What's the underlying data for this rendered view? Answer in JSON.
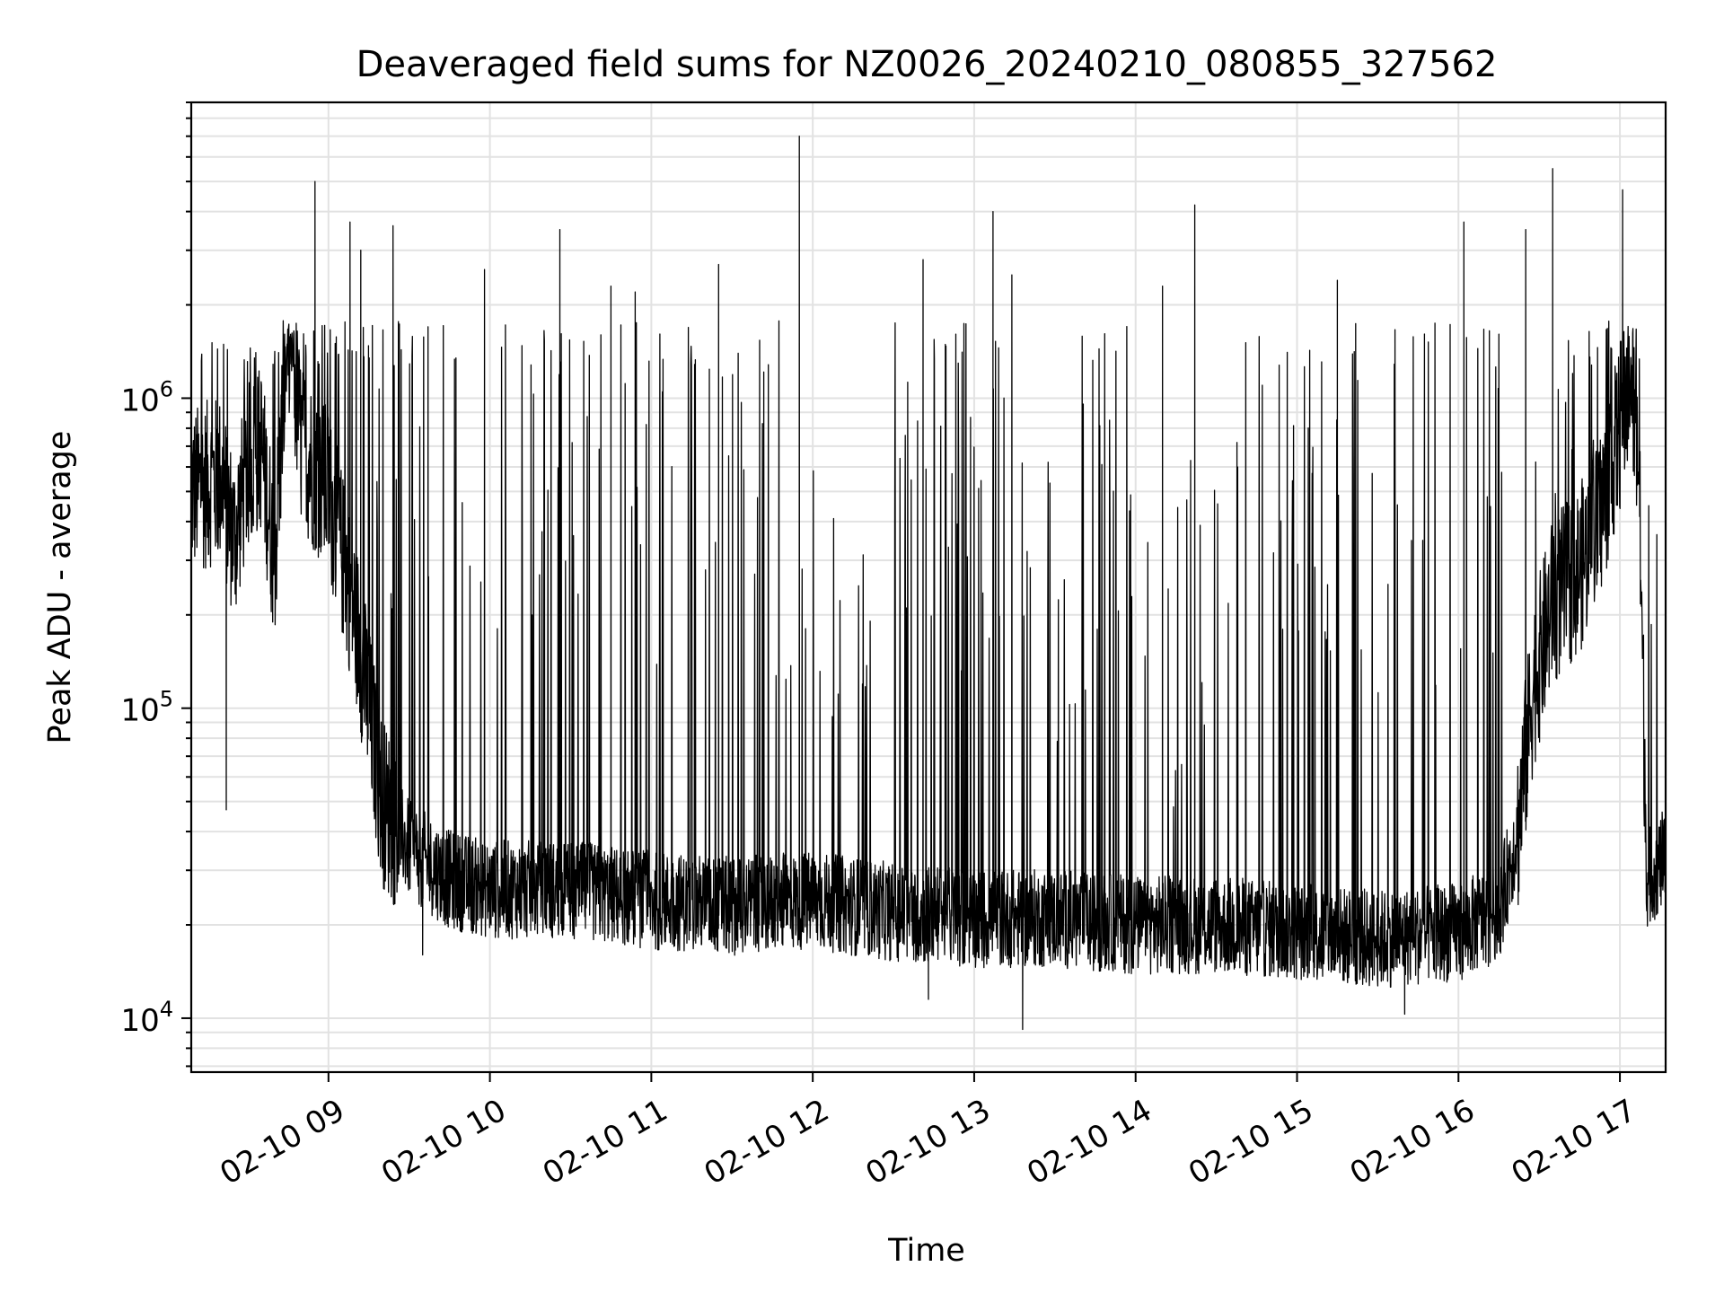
{
  "chart_data": {
    "type": "line",
    "title": "Deaveraged field sums for NZ0026_20240210_080855_327562",
    "xlabel": "Time",
    "ylabel": "Peak ADU - average",
    "y_scale": "log",
    "ylim": [
      6700,
      9000000
    ],
    "xlim": [
      "2024-02-10 08:09",
      "2024-02-10 17:17"
    ],
    "x_tick_labels": [
      "02-10 09",
      "02-10 10",
      "02-10 11",
      "02-10 12",
      "02-10 13",
      "02-10 14",
      "02-10 15",
      "02-10 16",
      "02-10 17"
    ],
    "x_tick_hours": [
      9,
      10,
      11,
      12,
      13,
      14,
      15,
      16,
      17
    ],
    "y_ticks": [
      {
        "value": 10000,
        "base": "10",
        "exp": "4"
      },
      {
        "value": 100000,
        "base": "10",
        "exp": "5"
      },
      {
        "value": 1000000,
        "base": "10",
        "exp": "6"
      }
    ],
    "grid": true,
    "legend": "none",
    "line_color": "#000000",
    "baseline": [
      {
        "x": "08:09",
        "y": 500000
      },
      {
        "x": "08:20",
        "y": 550000
      },
      {
        "x": "08:25",
        "y": 350000
      },
      {
        "x": "08:30",
        "y": 600000
      },
      {
        "x": "08:35",
        "y": 700000
      },
      {
        "x": "08:40",
        "y": 300000
      },
      {
        "x": "08:45",
        "y": 1800000
      },
      {
        "x": "08:50",
        "y": 700000
      },
      {
        "x": "09:00",
        "y": 500000
      },
      {
        "x": "09:10",
        "y": 200000
      },
      {
        "x": "09:20",
        "y": 50000
      },
      {
        "x": "09:30",
        "y": 35000
      },
      {
        "x": "09:45",
        "y": 28000
      },
      {
        "x": "10:00",
        "y": 26000
      },
      {
        "x": "10:30",
        "y": 26000
      },
      {
        "x": "11:00",
        "y": 24000
      },
      {
        "x": "11:30",
        "y": 23000
      },
      {
        "x": "12:00",
        "y": 24000
      },
      {
        "x": "12:30",
        "y": 22000
      },
      {
        "x": "13:00",
        "y": 21000
      },
      {
        "x": "13:30",
        "y": 21000
      },
      {
        "x": "14:00",
        "y": 20000
      },
      {
        "x": "14:30",
        "y": 20000
      },
      {
        "x": "15:00",
        "y": 19000
      },
      {
        "x": "15:30",
        "y": 18000
      },
      {
        "x": "16:00",
        "y": 19000
      },
      {
        "x": "16:15",
        "y": 22000
      },
      {
        "x": "16:22",
        "y": 40000
      },
      {
        "x": "16:28",
        "y": 120000
      },
      {
        "x": "16:35",
        "y": 220000
      },
      {
        "x": "16:45",
        "y": 280000
      },
      {
        "x": "16:52",
        "y": 400000
      },
      {
        "x": "17:00",
        "y": 800000
      },
      {
        "x": "17:04",
        "y": 1200000
      },
      {
        "x": "17:07",
        "y": 600000
      },
      {
        "x": "17:09",
        "y": 80000
      },
      {
        "x": "17:10",
        "y": 28000
      },
      {
        "x": "17:17",
        "y": 33000
      }
    ],
    "peaks": [
      {
        "x": "08:55",
        "y": 5000000
      },
      {
        "x": "09:08",
        "y": 3700000
      },
      {
        "x": "09:12",
        "y": 3000000
      },
      {
        "x": "09:24",
        "y": 3600000
      },
      {
        "x": "09:37",
        "y": 1700000
      },
      {
        "x": "09:58",
        "y": 2600000
      },
      {
        "x": "10:26",
        "y": 3500000
      },
      {
        "x": "10:45",
        "y": 2300000
      },
      {
        "x": "10:54",
        "y": 2200000
      },
      {
        "x": "11:25",
        "y": 2700000
      },
      {
        "x": "11:55",
        "y": 7000000
      },
      {
        "x": "12:41",
        "y": 2800000
      },
      {
        "x": "13:07",
        "y": 4000000
      },
      {
        "x": "13:14",
        "y": 2500000
      },
      {
        "x": "14:10",
        "y": 2300000
      },
      {
        "x": "14:22",
        "y": 4200000
      },
      {
        "x": "15:15",
        "y": 2400000
      },
      {
        "x": "16:02",
        "y": 3700000
      },
      {
        "x": "16:25",
        "y": 3500000
      },
      {
        "x": "16:35",
        "y": 5500000
      },
      {
        "x": "17:01",
        "y": 4700000
      }
    ],
    "dips": [
      {
        "x": "08:22",
        "y": 47000
      },
      {
        "x": "09:35",
        "y": 16000
      },
      {
        "x": "12:43",
        "y": 11500
      },
      {
        "x": "13:18",
        "y": 9200
      },
      {
        "x": "15:40",
        "y": 10300
      }
    ]
  }
}
